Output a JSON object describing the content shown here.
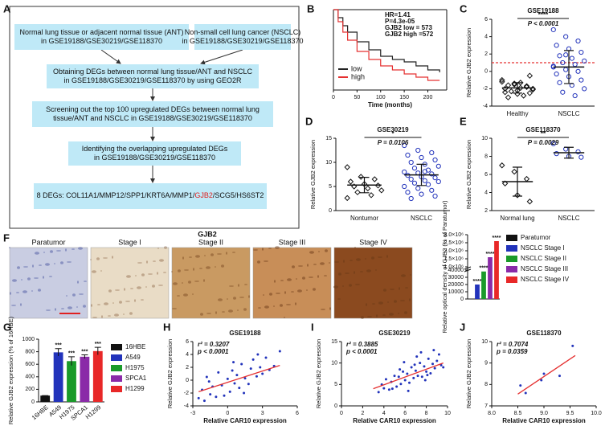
{
  "flowchart": {
    "panel": "A",
    "boxes": [
      {
        "lines": [
          "Normal lung tissue or adjacent normal tissue (ANT)",
          "in GSE19188/GSE30219/GSE118370"
        ]
      },
      {
        "lines": [
          "Non-small cell lung cancer (NSCLC)",
          "in GSE19188/GSE30219/GSE118370"
        ]
      },
      {
        "lines": [
          "Obtaining DEGs between normal lung tissue/ANT and NSCLC",
          "in GSE19188/GSE30219/GSE118370 by using GEO2R"
        ]
      },
      {
        "lines": [
          "Screening out the top 100 upregulated DEGs between normal lung",
          "tissue/ANT and NSCLC in GSE19188/GSE30219/GSE118370"
        ]
      },
      {
        "lines": [
          "Identifying the overlapping upregulated DEGs",
          "in GSE19188/GSE30219/GSE118370"
        ]
      },
      {
        "parts": [
          "8 DEGs: COL11A1/MMP12/SPP1/KRT6A/MMP1/",
          "GJB2",
          "/SCG5/HS6ST2"
        ],
        "highlight": 1,
        "highlight_color": "#e0201e"
      }
    ]
  },
  "images": {
    "panel": "F",
    "title": "GJB2",
    "labels": [
      "Paratumor",
      "Stage I",
      "Stage II",
      "Stage III",
      "Stage IV"
    ],
    "colors": [
      "#c9cde2",
      "#e9dcc6",
      "#c99a62",
      "#c88e58",
      "#8b4a1f"
    ]
  },
  "chart_data": [
    {
      "type": "line",
      "panel": "B",
      "xlabel": "Time (months)",
      "x": [
        0,
        10,
        20,
        30,
        50,
        75,
        100,
        125,
        150,
        175,
        200,
        225
      ],
      "xlim": [
        0,
        240
      ],
      "xticks": [
        0,
        50,
        100,
        150,
        200
      ],
      "ylim": [
        0,
        1
      ],
      "series": [
        {
          "name": "low",
          "color": "#222222",
          "values": [
            1,
            0.9,
            0.8,
            0.72,
            0.6,
            0.5,
            0.42,
            0.38,
            0.35,
            0.3,
            0.25,
            0.22
          ]
        },
        {
          "name": "high",
          "color": "#e53030",
          "values": [
            1,
            0.85,
            0.72,
            0.62,
            0.48,
            0.38,
            0.3,
            0.25,
            0.2,
            0.16,
            0.12,
            0.12
          ]
        }
      ],
      "annotations": [
        "HR=1.41",
        "P=4.3e-05",
        "GJB2 low = 573",
        "GJB2 high =572"
      ]
    },
    {
      "type": "dot",
      "panel": "C",
      "title": "GSE19188",
      "ylabel": "Relative GJB2 expression",
      "ylim": [
        -4,
        6
      ],
      "yticks": [
        -4,
        -2,
        0,
        2,
        4,
        6
      ],
      "threshold": 1,
      "threshold_color": "#e53030",
      "stars": "****",
      "p_text": "P < 0.0001",
      "groups": [
        {
          "name": "Healthy",
          "color": "#111111",
          "marker": "diamond",
          "mean": -1.9,
          "sd": 0.6,
          "values": [
            -1.2,
            -1.5,
            -1.8,
            -2,
            -2.2,
            -2.5,
            -1.6,
            -1.9,
            -2.1,
            -2.3,
            -2.8,
            -1,
            -1.4,
            -1.7,
            -2.4,
            -2.6,
            -0.5,
            -3,
            -1.3,
            -2
          ]
        },
        {
          "name": "NSCLC",
          "color": "#2233bb",
          "marker": "circle",
          "mean": 0.5,
          "sd": 1.9,
          "values": [
            4.8,
            4,
            3.5,
            3,
            2.6,
            2.2,
            1.8,
            1.5,
            1.2,
            1,
            0.8,
            0.5,
            0.2,
            0,
            -0.3,
            -0.6,
            -1,
            -1.3,
            -1.6,
            -2,
            -2.4,
            -2.8,
            0.6,
            1.9
          ]
        }
      ]
    },
    {
      "type": "dot",
      "panel": "D",
      "title": "GSE30219",
      "ylabel": "Relative GJB2 expression",
      "ylim": [
        0,
        15
      ],
      "yticks": [
        0,
        5,
        10,
        15
      ],
      "stars": "*",
      "p_text": "P = 0.0106",
      "groups": [
        {
          "name": "Nontumor",
          "color": "#111111",
          "marker": "diamond",
          "mean": 5.3,
          "sd": 1.6,
          "values": [
            9,
            7,
            6.5,
            6,
            5.5,
            5.2,
            5,
            4.6,
            4.2,
            3.8,
            3.2,
            2.6
          ]
        },
        {
          "name": "NSCLC",
          "color": "#2233bb",
          "marker": "circle",
          "mean": 7.4,
          "sd": 2.2,
          "values": [
            13.5,
            12.5,
            12,
            11.5,
            11,
            10.5,
            10,
            9.6,
            9.2,
            8.8,
            8.4,
            8,
            7.8,
            7.6,
            7.3,
            7,
            6.8,
            6.5,
            6.2,
            6,
            5.7,
            5.4,
            5,
            4.6,
            4.2,
            3.8,
            3.4,
            3,
            2.5,
            8.1
          ]
        }
      ]
    },
    {
      "type": "dot",
      "panel": "E",
      "title": "GSE118370",
      "ylabel": "Relative GJB2 expression",
      "ylim": [
        2,
        10
      ],
      "yticks": [
        2,
        4,
        6,
        8,
        10
      ],
      "stars": "**",
      "p_text": "P = 0.0029",
      "groups": [
        {
          "name": "Normal lung",
          "color": "#111111",
          "marker": "diamond",
          "mean": 5.2,
          "sd": 1.6,
          "values": [
            7,
            6.3,
            5.5,
            5,
            3.7,
            3
          ]
        },
        {
          "name": "NSCLC",
          "color": "#2233bb",
          "marker": "circle",
          "mean": 8.4,
          "sd": 0.6,
          "values": [
            9.4,
            8.8,
            8.5,
            8.3,
            8,
            7.9
          ]
        }
      ]
    },
    {
      "type": "bar",
      "panel": "F",
      "ylabel": "Relative optical density of GJB2 (% of Paratumor)",
      "categories": [
        "Paratumor",
        "NSCLC Stage I",
        "NSCLC Stage II",
        "NSCLC Stage III",
        "NSCLC Stage IV"
      ],
      "values": [
        500,
        20000,
        38000,
        1600000,
        2600000
      ],
      "colors": [
        "#111111",
        "#2233bb",
        "#1a9a2a",
        "#8a2aa8",
        "#e82828"
      ],
      "bar_labels": [
        null,
        "****",
        "****",
        "****",
        "****"
      ],
      "ylim": [
        0,
        3000000
      ],
      "axis_break": [
        40000,
        1000000
      ],
      "yticks": [
        0,
        10000,
        20000,
        30000,
        40000,
        {
          "value": 1000000,
          "label": "1.0×10⁶"
        },
        {
          "value": 1500000,
          "label": "1.5×10⁶"
        },
        {
          "value": 2000000,
          "label": "2.0×10⁶"
        },
        {
          "value": 2500000,
          "label": "2.5×10⁶"
        },
        {
          "value": 3000000,
          "label": "3.0×10⁶"
        }
      ],
      "show_x_labels": false
    },
    {
      "type": "bar",
      "panel": "G",
      "ylabel": "Relative GJB2 expression (% of 16HBE)",
      "categories": [
        "16HBE",
        "A549",
        "H1975",
        "SPCA1",
        "H1299"
      ],
      "values": [
        100,
        790,
        650,
        720,
        810
      ],
      "errors": [
        0,
        60,
        70,
        30,
        60
      ],
      "colors": [
        "#111111",
        "#2233bb",
        "#1a9a2a",
        "#8a2aa8",
        "#e82828"
      ],
      "bar_labels": [
        null,
        "***",
        "***",
        "***",
        "***"
      ],
      "ylim": [
        0,
        1000
      ],
      "yticks": [
        0,
        200,
        400,
        600,
        800,
        1000
      ],
      "show_x_labels": true
    },
    {
      "type": "scatter",
      "panel": "H",
      "title": "GSE19188",
      "xlabel": "Relative CAR10 expression",
      "ylabel": "Relative GJB2 expression",
      "r2_text": "r² = 0.3207",
      "p_text": "p < 0.0001",
      "color": "#2233bb",
      "fit_color": "#e53030",
      "xlim": [
        -3,
        6
      ],
      "xticks": [
        -3,
        0,
        3,
        6
      ],
      "ylim": [
        -4,
        6
      ],
      "yticks": [
        -4,
        -2,
        0,
        2,
        4,
        6
      ],
      "x": [
        -2.5,
        -2.2,
        -2,
        -1.8,
        -1.5,
        -1.3,
        -1,
        -0.8,
        -0.5,
        -0.3,
        0,
        0.2,
        0.4,
        0.6,
        0.8,
        1,
        1.2,
        1.5,
        1.8,
        2,
        2.2,
        2.5,
        2.8,
        3,
        3.3,
        3.6,
        4,
        4.5,
        -1.6,
        0.5,
        1.4,
        2.6
      ],
      "values": [
        -2.8,
        -1.5,
        -3.2,
        0.5,
        -2.2,
        -1,
        -2.6,
        1.2,
        -0.8,
        -2.4,
        0.2,
        -1.8,
        1.5,
        -0.5,
        0.8,
        -1.2,
        2.5,
        0.3,
        -0.6,
        1.8,
        3.2,
        0.6,
        2,
        1,
        3.5,
        1.6,
        2.2,
        4.5,
        -0.2,
        2.8,
        -2,
        4
      ],
      "fit": {
        "x": [
          -2.5,
          4.5
        ],
        "y": [
          -1.8,
          2.3
        ]
      }
    },
    {
      "type": "scatter",
      "panel": "I",
      "title": "GSE30219",
      "xlabel": "Relative CAR10 expression",
      "ylabel": "Relative GJB2 expression",
      "r2_text": "r² = 0.3885",
      "p_text": "p < 0.0001",
      "color": "#2233bb",
      "fit_color": "#e53030",
      "xlim": [
        0,
        10
      ],
      "xticks": [
        0,
        2,
        4,
        6,
        8,
        10
      ],
      "ylim": [
        0,
        15
      ],
      "yticks": [
        0,
        5,
        10,
        15
      ],
      "x": [
        3.5,
        3.8,
        4,
        4.2,
        4.5,
        4.7,
        5,
        5.2,
        5.4,
        5.6,
        5.8,
        6,
        6.2,
        6.4,
        6.6,
        6.8,
        7,
        7.2,
        7.4,
        7.6,
        7.8,
        8,
        8.2,
        8.4,
        8.6,
        8.8,
        9,
        9.2,
        9.4,
        4.8,
        5.5,
        6.3,
        7.1,
        7.9,
        8.7,
        6.9,
        7.5,
        8.1,
        5.9,
        9.6
      ],
      "values": [
        3.2,
        5,
        4.1,
        6.2,
        3.8,
        5.6,
        7,
        4.5,
        6.8,
        5.1,
        8,
        6,
        7.5,
        5.4,
        9,
        6.5,
        8.2,
        7,
        10,
        6.8,
        9.2,
        8,
        11,
        7.6,
        9.8,
        8.8,
        10.5,
        12,
        9.5,
        4,
        8.5,
        3.5,
        11.5,
        6,
        13,
        9.6,
        12.5,
        7.2,
        10.2,
        9
      ],
      "fit": {
        "x": [
          3,
          9.6
        ],
        "y": [
          4,
          10
        ]
      }
    },
    {
      "type": "scatter",
      "panel": "J",
      "title": "GSE118370",
      "xlabel": "Relative CAR10 expression",
      "ylabel": "Relative GJB2 expression",
      "r2_text": "r² = 0.7074",
      "p_text": "p = 0.0359",
      "color": "#2233bb",
      "fit_color": "#e53030",
      "xlim": [
        8,
        10
      ],
      "xticks": [
        {
          "value": 8,
          "label": "8.0"
        },
        8.5,
        {
          "value": 9,
          "label": "9.0"
        },
        9.5,
        {
          "value": 10,
          "label": "10.0"
        }
      ],
      "ylim": [
        7,
        10
      ],
      "yticks": [
        7,
        8,
        9,
        10
      ],
      "x": [
        8.55,
        8.65,
        8.95,
        9.0,
        9.3,
        9.55
      ],
      "values": [
        7.95,
        7.6,
        8.2,
        8.5,
        8.4,
        9.8
      ],
      "fit": {
        "x": [
          8.5,
          9.6
        ],
        "y": [
          7.55,
          9.35
        ]
      }
    }
  ]
}
